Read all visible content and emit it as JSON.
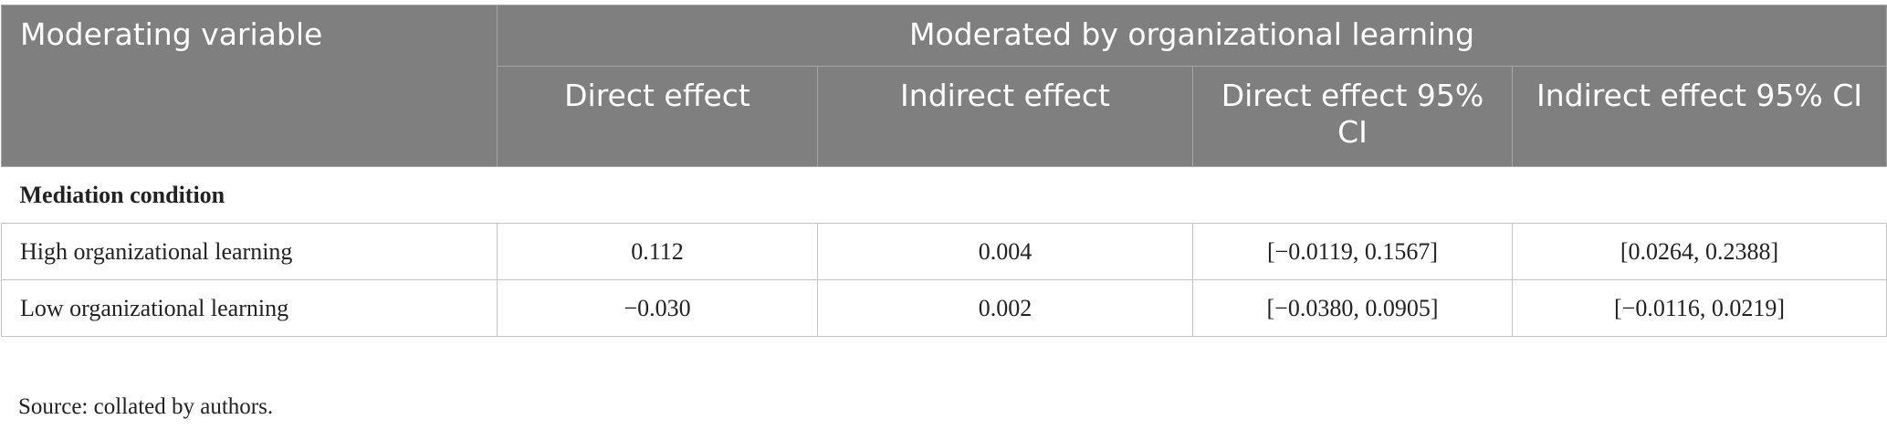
{
  "table": {
    "header": {
      "row_label": "Moderating variable",
      "group": "Moderated by organizational learning",
      "columns": [
        "Direct effect",
        "Indirect effect",
        "Direct effect 95% CI",
        "Indirect effect 95% CI"
      ]
    },
    "section": "Mediation condition",
    "rows": [
      [
        "High organizational learning",
        "0.112",
        "0.004",
        "[−0.0119, 0.1567]",
        "[0.0264, 0.2388]"
      ],
      [
        "Low organizational learning",
        "−0.030",
        "0.002",
        "[−0.0380, 0.0905]",
        "[−0.0116, 0.0219]"
      ]
    ]
  },
  "source": "Source: collated by authors."
}
